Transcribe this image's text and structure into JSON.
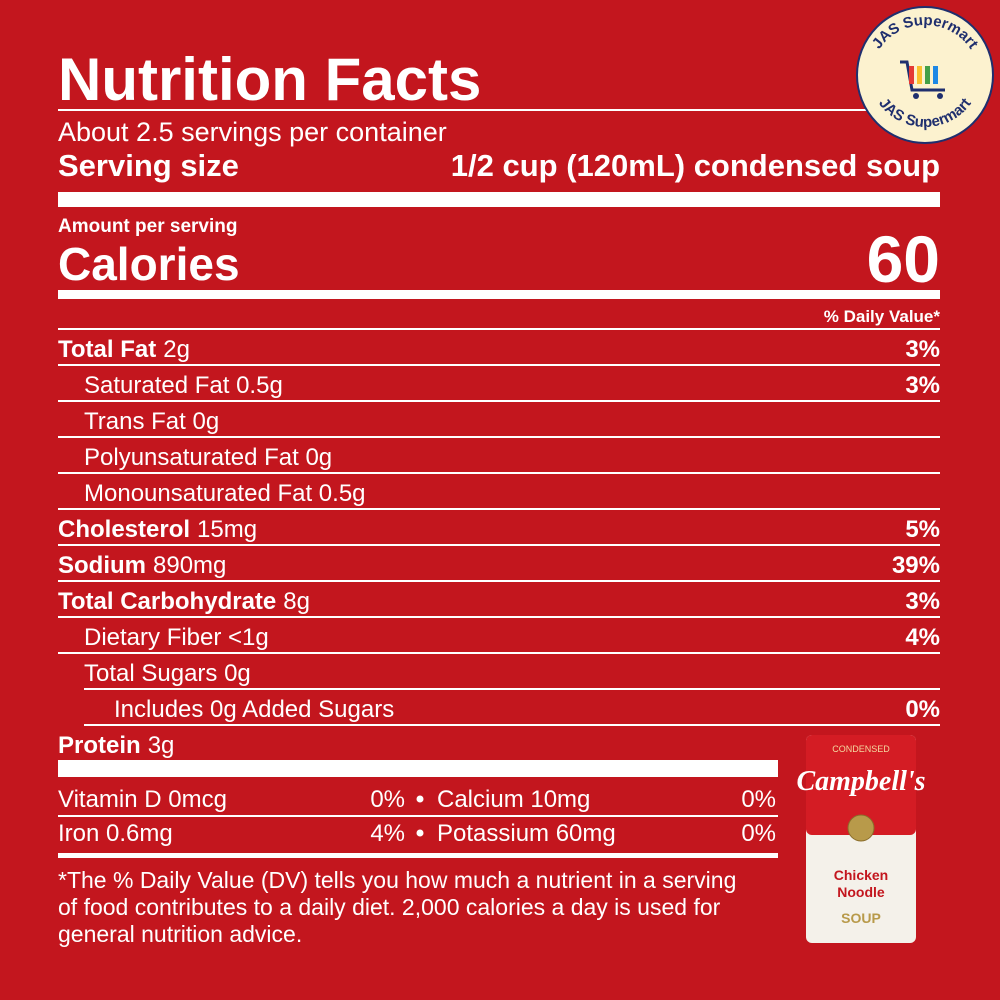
{
  "header": {
    "title": "Nutrition Facts",
    "servings": "About 2.5 servings per container",
    "serving_size_label": "Serving size",
    "serving_size_value": "1/2 cup (120mL) condensed soup"
  },
  "calories": {
    "amount_label": "Amount per serving",
    "label": "Calories",
    "value": 60
  },
  "daily_value_header": "% Daily Value*",
  "nutrients": [
    {
      "name": "Total Fat",
      "amount": "2g",
      "dv": "3%"
    },
    {
      "name": "Saturated Fat 0.5g",
      "dv": "3%"
    },
    {
      "name": "Trans Fat 0g"
    },
    {
      "name": "Polyunsaturated Fat 0g"
    },
    {
      "name": "Monounsaturated Fat 0.5g"
    },
    {
      "name": "Cholesterol",
      "amount": "15mg",
      "dv": "5%"
    },
    {
      "name": "Sodium",
      "amount": "890mg",
      "dv": "39%"
    },
    {
      "name": "Total Carbohydrate",
      "amount": "8g",
      "dv": "3%"
    },
    {
      "name": "Dietary Fiber <1g",
      "dv": "4%"
    },
    {
      "name": "Total Sugars 0g"
    },
    {
      "name": "Includes 0g Added Sugars",
      "dv": "0%"
    },
    {
      "name": "Protein",
      "amount": "3g"
    }
  ],
  "vitamins": [
    [
      {
        "name": "Vitamin D 0mcg",
        "dv": "0%"
      },
      {
        "name": "Calcium 10mg",
        "dv": "0%"
      }
    ],
    [
      {
        "name": "Iron 0.6mg",
        "dv": "4%"
      },
      {
        "name": "Potassium 60mg",
        "dv": "0%"
      }
    ]
  ],
  "footnote": [
    "*The % Daily Value (DV) tells you how much a nutrient in a serving",
    "of food contributes to a daily diet. 2,000 calories a day is used for",
    "general nutrition advice."
  ],
  "logo": {
    "top": "JAS Supermart",
    "bottom": "JAS Supermart"
  },
  "can": {
    "top": "CONDENSED",
    "brand": "Campbell's",
    "flavor": [
      "Chicken",
      "Noodle"
    ],
    "kind": "SOUP"
  }
}
